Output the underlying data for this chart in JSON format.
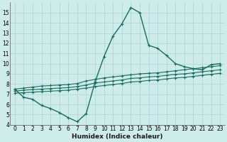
{
  "xlabel": "Humidex (Indice chaleur)",
  "bg_color": "#ceecea",
  "grid_color": "#aed8d4",
  "line_color": "#1a6b60",
  "xlim": [
    -0.5,
    23.5
  ],
  "ylim": [
    4,
    16
  ],
  "xticks": [
    0,
    1,
    2,
    3,
    4,
    5,
    6,
    7,
    8,
    9,
    10,
    11,
    12,
    13,
    14,
    15,
    16,
    17,
    18,
    19,
    20,
    21,
    22,
    23
  ],
  "yticks": [
    4,
    5,
    6,
    7,
    8,
    9,
    10,
    11,
    12,
    13,
    14,
    15
  ],
  "curve_main_x": [
    0,
    1,
    2,
    3,
    4,
    5,
    6,
    7,
    8,
    9,
    10,
    11,
    12,
    13,
    14,
    15,
    16,
    17,
    18,
    19,
    20,
    21,
    22,
    23
  ],
  "curve_main_y": [
    7.5,
    6.7,
    6.5,
    5.9,
    5.6,
    5.2,
    4.7,
    4.3,
    5.1,
    8.2,
    10.7,
    12.7,
    13.9,
    15.5,
    15.0,
    11.8,
    11.5,
    10.8,
    10.0,
    9.7,
    9.5,
    9.4,
    9.9,
    10.0
  ],
  "curve_line1_x": [
    0,
    8,
    23
  ],
  "curve_line1_y": [
    7.5,
    8.3,
    10.0
  ],
  "curve_line2_x": [
    0,
    8,
    23
  ],
  "curve_line2_y": [
    7.3,
    7.9,
    9.7
  ],
  "curve_line3_x": [
    0,
    8,
    23
  ],
  "curve_line3_y": [
    7.1,
    7.5,
    9.3
  ],
  "band_x": [
    0,
    1,
    2,
    3,
    4,
    5,
    6,
    7,
    8,
    9,
    10,
    11,
    12,
    13,
    14,
    15,
    16,
    17,
    18,
    19,
    20,
    21,
    22,
    23
  ],
  "band1_y": [
    7.5,
    7.6,
    7.7,
    7.8,
    7.85,
    7.9,
    7.95,
    8.05,
    8.3,
    8.45,
    8.6,
    8.7,
    8.8,
    8.9,
    9.0,
    9.05,
    9.1,
    9.2,
    9.3,
    9.4,
    9.5,
    9.6,
    9.7,
    9.8
  ],
  "band2_y": [
    7.3,
    7.4,
    7.45,
    7.5,
    7.55,
    7.6,
    7.65,
    7.75,
    7.9,
    8.1,
    8.2,
    8.3,
    8.4,
    8.55,
    8.6,
    8.7,
    8.75,
    8.85,
    8.95,
    9.0,
    9.1,
    9.2,
    9.3,
    9.4
  ],
  "band3_y": [
    7.1,
    7.15,
    7.2,
    7.25,
    7.3,
    7.35,
    7.4,
    7.5,
    7.6,
    7.75,
    7.85,
    7.95,
    8.05,
    8.2,
    8.25,
    8.35,
    8.4,
    8.5,
    8.6,
    8.65,
    8.75,
    8.85,
    8.95,
    9.05
  ]
}
